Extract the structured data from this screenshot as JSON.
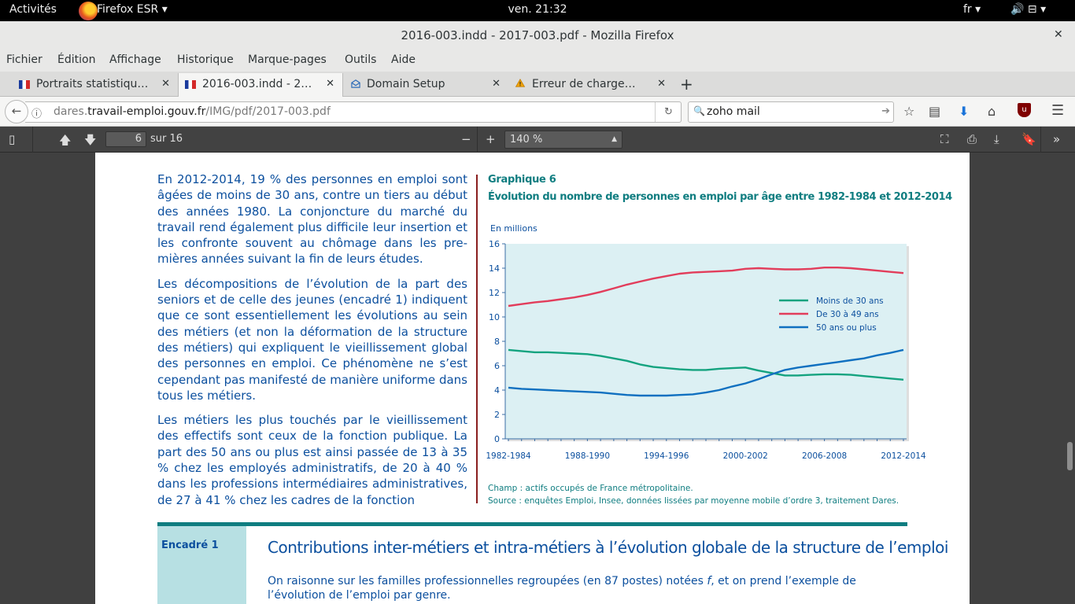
{
  "gnome": {
    "activities": "Activités",
    "app_name": "Firefox ESR",
    "app_arrow": "▾",
    "clock": "ven. 21:32",
    "lang": "fr ▾",
    "sys": "🔊 ⊟ ▾"
  },
  "window": {
    "title": "2016-003.indd - 2017-003.pdf - Mozilla Firefox",
    "close": "✕"
  },
  "menu": {
    "items": [
      "Fichier",
      "Édition",
      "Affichage",
      "Historique",
      "Marque-pages",
      "Outils",
      "Aide"
    ]
  },
  "tabs": [
    {
      "label": "Portraits statistiqu…",
      "favicon": "french-flag-icon"
    },
    {
      "label": "2016-003.indd - 2…",
      "favicon": "french-flag-icon",
      "active": true
    },
    {
      "label": "Domain Setup",
      "favicon": "envelope-icon"
    },
    {
      "label": "Erreur de charge…",
      "favicon": "warning-icon"
    }
  ],
  "tab_close": "✕",
  "tab_new": "+",
  "nav": {
    "url_domain_prefix": "dares.",
    "url_domain": "travail-emploi.gouv.fr",
    "url_path": "/IMG/pdf/2017-003.pdf",
    "search_value": "zoho mail"
  },
  "pdf_toolbar": {
    "page_number": "6",
    "page_of": "sur 16",
    "zoom": "140 %"
  },
  "document": {
    "paragraphs": [
      "En 2012-2014, 19 % des personnes en emploi sont âgées de moins de 30 ans, contre un tiers au début des années 1980. La conjoncture du marché du travail rend également plus difficile leur insertion et les confronte souvent au chômage dans les pre­mières années suivant la fin de leurs études.",
      "Les décompositions de l’évolution de la part des seniors et de celle des jeunes (encadré 1) indiquent que ce sont essentiellement les évolutions au sein des métiers (et non la déformation de la structure des métiers) qui expliquent le vieillissement global des personnes en emploi. Ce phénomène ne s’est cependant pas manifesté de manière uniforme dans tous les métiers.",
      "Les métiers les plus touchés par le vieillissement des effectifs sont ceux de la fonction publique. La part des 50 ans ou plus est ainsi passée de 13 à 35 % chez les employés administratifs, de 20 à 40 % dans les professions intermédiaires adminis­tratives, de 27 à 41 % chez les cadres de la fonction"
    ],
    "graph_kicker": "Graphique 6",
    "graph_title": "Évolution du nombre de personnes en emploi par âge entre 1982-1984 et 2012-2014",
    "unit": "En millions",
    "champ": "Champ : actifs occupés de France métropolitaine.",
    "source": "Source : enquêtes Emploi, Insee, données lissées par moyenne mobile d’ordre 3, traitement Dares.",
    "encadre_label": "Encadré 1",
    "encadre_title": "Contributions inter-métiers et intra-métiers à l’évolution globale de la structure de l’emploi",
    "encadre_body_1": "On raisonne sur les familles professionnelles regroupées (en 87 postes) notées ",
    "encadre_body_var": "f",
    "encadre_body_2": ", et on prend l’exemple de l’évolution de l’emploi par genre."
  },
  "chart_data": {
    "type": "line",
    "title": "Évolution du nombre de personnes en emploi par âge entre 1982-1984 et 2012-2014",
    "ylabel": "En millions",
    "ylim": [
      0,
      16
    ],
    "yticks": [
      0,
      2,
      4,
      6,
      8,
      10,
      12,
      14,
      16
    ],
    "x": [
      1983,
      1984,
      1985,
      1986,
      1987,
      1988,
      1989,
      1990,
      1991,
      1992,
      1993,
      1994,
      1995,
      1996,
      1997,
      1998,
      1999,
      2000,
      2001,
      2002,
      2003,
      2004,
      2005,
      2006,
      2007,
      2008,
      2009,
      2010,
      2011,
      2012,
      2013
    ],
    "x_tick_labels": [
      {
        "x": 1983,
        "label": "1982-1984"
      },
      {
        "x": 1989,
        "label": "1988-1990"
      },
      {
        "x": 1995,
        "label": "1994-1996"
      },
      {
        "x": 2001,
        "label": "2000-2002"
      },
      {
        "x": 2007,
        "label": "2006-2008"
      },
      {
        "x": 2013,
        "label": "2012-2014"
      }
    ],
    "grid": false,
    "legend": "right",
    "colors": {
      "plot_bg": "#dcf0f3",
      "axis": "#3a6ea5",
      "text": "#0b4f9e"
    },
    "series": [
      {
        "name": "Moins de 30 ans",
        "color": "#14a37f",
        "values": [
          7.3,
          7.2,
          7.1,
          7.1,
          7.05,
          7.0,
          6.95,
          6.8,
          6.6,
          6.4,
          6.1,
          5.9,
          5.8,
          5.7,
          5.65,
          5.65,
          5.75,
          5.8,
          5.85,
          5.6,
          5.4,
          5.2,
          5.2,
          5.25,
          5.3,
          5.3,
          5.25,
          5.15,
          5.05,
          4.95,
          4.85
        ]
      },
      {
        "name": "De 30 à 49 ans",
        "color": "#e23d5b",
        "values": [
          10.9,
          11.05,
          11.2,
          11.3,
          11.45,
          11.6,
          11.8,
          12.05,
          12.35,
          12.65,
          12.9,
          13.15,
          13.35,
          13.55,
          13.65,
          13.7,
          13.75,
          13.8,
          13.95,
          14.0,
          13.95,
          13.9,
          13.9,
          13.95,
          14.05,
          14.05,
          14.0,
          13.9,
          13.8,
          13.7,
          13.6
        ]
      },
      {
        "name": "50 ans ou plus",
        "color": "#1070c0",
        "values": [
          4.2,
          4.1,
          4.05,
          4.0,
          3.95,
          3.9,
          3.85,
          3.8,
          3.7,
          3.6,
          3.55,
          3.55,
          3.55,
          3.6,
          3.65,
          3.8,
          4.0,
          4.3,
          4.55,
          4.9,
          5.3,
          5.65,
          5.85,
          6.0,
          6.15,
          6.3,
          6.45,
          6.6,
          6.85,
          7.05,
          7.3
        ]
      }
    ]
  }
}
